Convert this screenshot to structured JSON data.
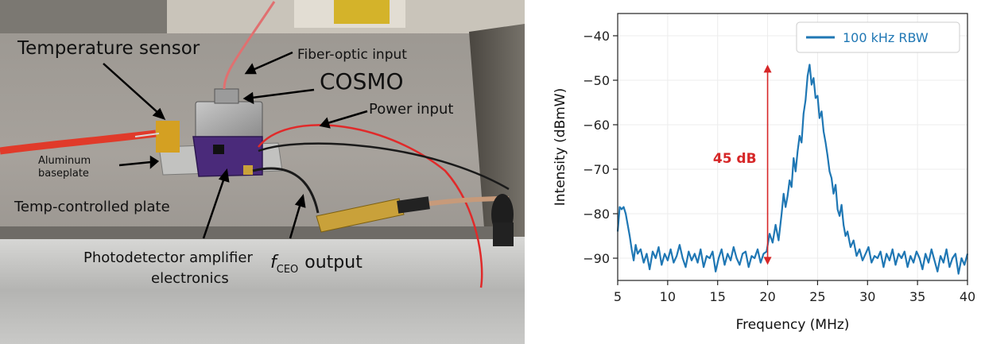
{
  "photo": {
    "labels": {
      "temperature_sensor": "Temperature sensor",
      "fiber_optic_input": "Fiber-optic input",
      "cosmo": "COSMO",
      "power_input": "Power input",
      "aluminum_baseplate_line1": "Aluminum",
      "aluminum_baseplate_line2": "baseplate",
      "temp_controlled_plate": "Temp-controlled plate",
      "photodetector_line1": "Photodetector amplifier",
      "photodetector_line2": "electronics",
      "fceo_symbol": "f",
      "fceo_subscript": "CEO",
      "fceo_output": "output"
    }
  },
  "chart_data": {
    "type": "line",
    "title": "",
    "xlabel": "Frequency (MHz)",
    "ylabel": "Intensity (dBmW)",
    "xlim": [
      5,
      40
    ],
    "ylim": [
      -95,
      -35
    ],
    "xticks": [
      5,
      10,
      15,
      20,
      25,
      30,
      35,
      40
    ],
    "yticks": [
      -40,
      -50,
      -60,
      -70,
      -80,
      -90
    ],
    "grid": true,
    "legend": {
      "placement": "top-right"
    },
    "annotation": {
      "text": "45 dB",
      "x": 20,
      "y_top": -46.5,
      "y_bottom": -91.5,
      "color": "#d62728"
    },
    "series": [
      {
        "name": "100 kHz RBW",
        "color": "#1f77b4",
        "x": [
          5.0,
          5.2,
          5.4,
          5.6,
          5.8,
          6.0,
          6.2,
          6.4,
          6.6,
          6.8,
          7.0,
          7.3,
          7.6,
          7.9,
          8.2,
          8.5,
          8.8,
          9.1,
          9.4,
          9.7,
          10.0,
          10.3,
          10.6,
          10.9,
          11.2,
          11.5,
          11.8,
          12.1,
          12.4,
          12.7,
          13.0,
          13.3,
          13.6,
          13.9,
          14.2,
          14.5,
          14.8,
          15.1,
          15.4,
          15.7,
          16.0,
          16.3,
          16.6,
          16.9,
          17.2,
          17.5,
          17.8,
          18.1,
          18.4,
          18.7,
          19.0,
          19.3,
          19.6,
          19.9,
          20.2,
          20.5,
          20.8,
          21.1,
          21.4,
          21.6,
          21.8,
          22.0,
          22.2,
          22.4,
          22.6,
          22.8,
          23.0,
          23.2,
          23.4,
          23.6,
          23.8,
          24.0,
          24.2,
          24.4,
          24.6,
          24.8,
          25.0,
          25.2,
          25.4,
          25.6,
          25.8,
          26.0,
          26.2,
          26.4,
          26.6,
          26.8,
          27.0,
          27.2,
          27.4,
          27.6,
          27.8,
          28.0,
          28.3,
          28.6,
          28.9,
          29.2,
          29.5,
          29.8,
          30.1,
          30.4,
          30.7,
          31.0,
          31.3,
          31.6,
          31.9,
          32.2,
          32.5,
          32.8,
          33.1,
          33.4,
          33.7,
          34.0,
          34.3,
          34.6,
          34.9,
          35.2,
          35.5,
          35.8,
          36.1,
          36.4,
          36.7,
          37.0,
          37.3,
          37.6,
          37.9,
          38.2,
          38.5,
          38.8,
          39.1,
          39.4,
          39.7,
          40.0
        ],
        "y": [
          -84.0,
          -78.5,
          -79.0,
          -78.5,
          -80.0,
          -82.5,
          -85.0,
          -88.0,
          -90.5,
          -87.0,
          -89.0,
          -88.0,
          -91.0,
          -89.0,
          -92.5,
          -88.5,
          -90.0,
          -87.5,
          -91.5,
          -89.0,
          -90.5,
          -88.0,
          -91.0,
          -89.5,
          -87.0,
          -90.0,
          -92.0,
          -88.5,
          -90.5,
          -89.0,
          -91.0,
          -88.0,
          -92.0,
          -89.5,
          -90.0,
          -88.5,
          -93.0,
          -90.0,
          -88.0,
          -91.5,
          -89.0,
          -90.5,
          -87.5,
          -90.0,
          -91.5,
          -89.0,
          -88.5,
          -92.0,
          -89.5,
          -90.0,
          -88.0,
          -91.0,
          -89.0,
          -88.5,
          -84.5,
          -86.5,
          -82.5,
          -86.0,
          -80.0,
          -75.5,
          -78.5,
          -76.0,
          -72.5,
          -74.0,
          -67.5,
          -70.5,
          -66.0,
          -62.5,
          -64.0,
          -57.5,
          -54.5,
          -49.0,
          -46.5,
          -51.0,
          -49.5,
          -54.0,
          -53.5,
          -58.5,
          -57.0,
          -61.5,
          -64.0,
          -67.0,
          -70.5,
          -72.0,
          -75.5,
          -73.5,
          -79.0,
          -80.5,
          -78.0,
          -82.5,
          -85.0,
          -84.0,
          -87.5,
          -86.0,
          -89.5,
          -88.0,
          -90.5,
          -89.0,
          -87.5,
          -91.0,
          -89.5,
          -90.0,
          -88.5,
          -92.0,
          -89.0,
          -90.5,
          -88.0,
          -91.5,
          -89.0,
          -90.0,
          -88.5,
          -92.0,
          -89.5,
          -91.0,
          -88.5,
          -90.0,
          -92.5,
          -89.0,
          -91.0,
          -88.0,
          -90.5,
          -93.0,
          -89.5,
          -91.0,
          -88.0,
          -92.0,
          -90.0,
          -89.0,
          -93.5,
          -90.0,
          -91.5,
          -89.0
        ]
      }
    ]
  }
}
